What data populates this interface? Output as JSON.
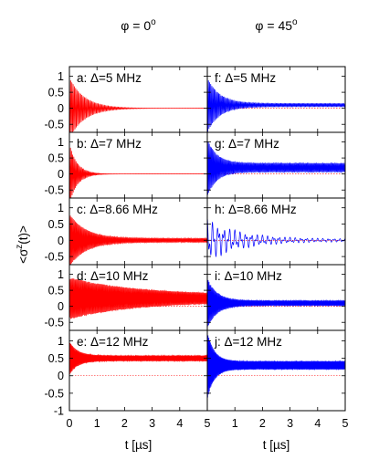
{
  "chart_data": {
    "type": "line",
    "column_titles": [
      "φ = 0°",
      "φ = 45°"
    ],
    "column_title_parts": [
      {
        "base": "φ = 0",
        "sup": "o"
      },
      {
        "base": "φ = 45",
        "sup": "o"
      }
    ],
    "ylabel": {
      "base": "<σ",
      "sup": "z",
      "rest": "(t)>"
    },
    "xlabel": "t [µs]",
    "xlim": [
      0,
      5
    ],
    "ylim": [
      -1,
      1.3
    ],
    "x_ticks": [
      "0",
      "1",
      "2",
      "3",
      "4",
      "5"
    ],
    "y_ticks": [
      "-0.5",
      "0",
      "0.5",
      "1"
    ],
    "y_ticks_bottom": [
      "-1",
      "-0.5",
      "0",
      "0.5",
      "1"
    ],
    "reference_line_y": 0,
    "colors": {
      "phi0": "#ff0000",
      "phi45": "#0000ff",
      "reference": "#ff0000",
      "axis": "#000000"
    },
    "panels": [
      {
        "id": "a",
        "label": "a: Δ=5 MHz",
        "col": 0,
        "row": 0,
        "freq_cycles_per_us": 22,
        "init_amp": 0.95,
        "decay_time_us": 0.55,
        "offset": 0.0,
        "residual_amp": 0.0
      },
      {
        "id": "b",
        "label": "b: Δ=7 MHz",
        "col": 0,
        "row": 1,
        "freq_cycles_per_us": 25,
        "init_amp": 0.95,
        "decay_time_us": 0.28,
        "offset": 0.0,
        "residual_amp": 0.0
      },
      {
        "id": "c",
        "label": "c: Δ=8.66 MHz",
        "col": 0,
        "row": 2,
        "freq_cycles_per_us": 28,
        "init_amp": 0.75,
        "decay_time_us": 0.6,
        "offset": 0.0,
        "residual_amp": 0.06
      },
      {
        "id": "d",
        "label": "d: Δ=10 MHz",
        "col": 0,
        "row": 3,
        "freq_cycles_per_us": 30,
        "init_amp": 0.55,
        "decay_time_us": 2.5,
        "offset": 0.25,
        "residual_amp": 0.1
      },
      {
        "id": "e",
        "label": "e: Δ=12 MHz",
        "col": 0,
        "row": 4,
        "freq_cycles_per_us": 33,
        "init_amp": 0.4,
        "decay_time_us": 0.3,
        "offset": 0.5,
        "residual_amp": 0.08
      },
      {
        "id": "f",
        "label": "f: Δ=5 MHz",
        "col": 1,
        "row": 0,
        "freq_cycles_per_us": 24,
        "init_amp": 0.8,
        "decay_time_us": 0.45,
        "offset": 0.1,
        "residual_amp": 0.05
      },
      {
        "id": "g",
        "label": "g: Δ=7 MHz",
        "col": 1,
        "row": 1,
        "freq_cycles_per_us": 27,
        "init_amp": 0.75,
        "decay_time_us": 0.35,
        "offset": 0.2,
        "residual_amp": 0.14
      },
      {
        "id": "h",
        "label": "h: Δ=8.66 MHz",
        "col": 1,
        "row": 2,
        "freq_cycles_per_us": 5,
        "init_amp": 0.65,
        "decay_time_us": 1.2,
        "offset": 0.0,
        "residual_amp": 0.04
      },
      {
        "id": "i",
        "label": "i: Δ=10 MHz",
        "col": 1,
        "row": 3,
        "freq_cycles_per_us": 31,
        "init_amp": 0.7,
        "decay_time_us": 0.35,
        "offset": 0.1,
        "residual_amp": 0.08
      },
      {
        "id": "j",
        "label": "j: Δ=12 MHz",
        "col": 1,
        "row": 4,
        "freq_cycles_per_us": 34,
        "init_amp": 0.85,
        "decay_time_us": 0.25,
        "offset": 0.3,
        "residual_amp": 0.12
      }
    ]
  }
}
